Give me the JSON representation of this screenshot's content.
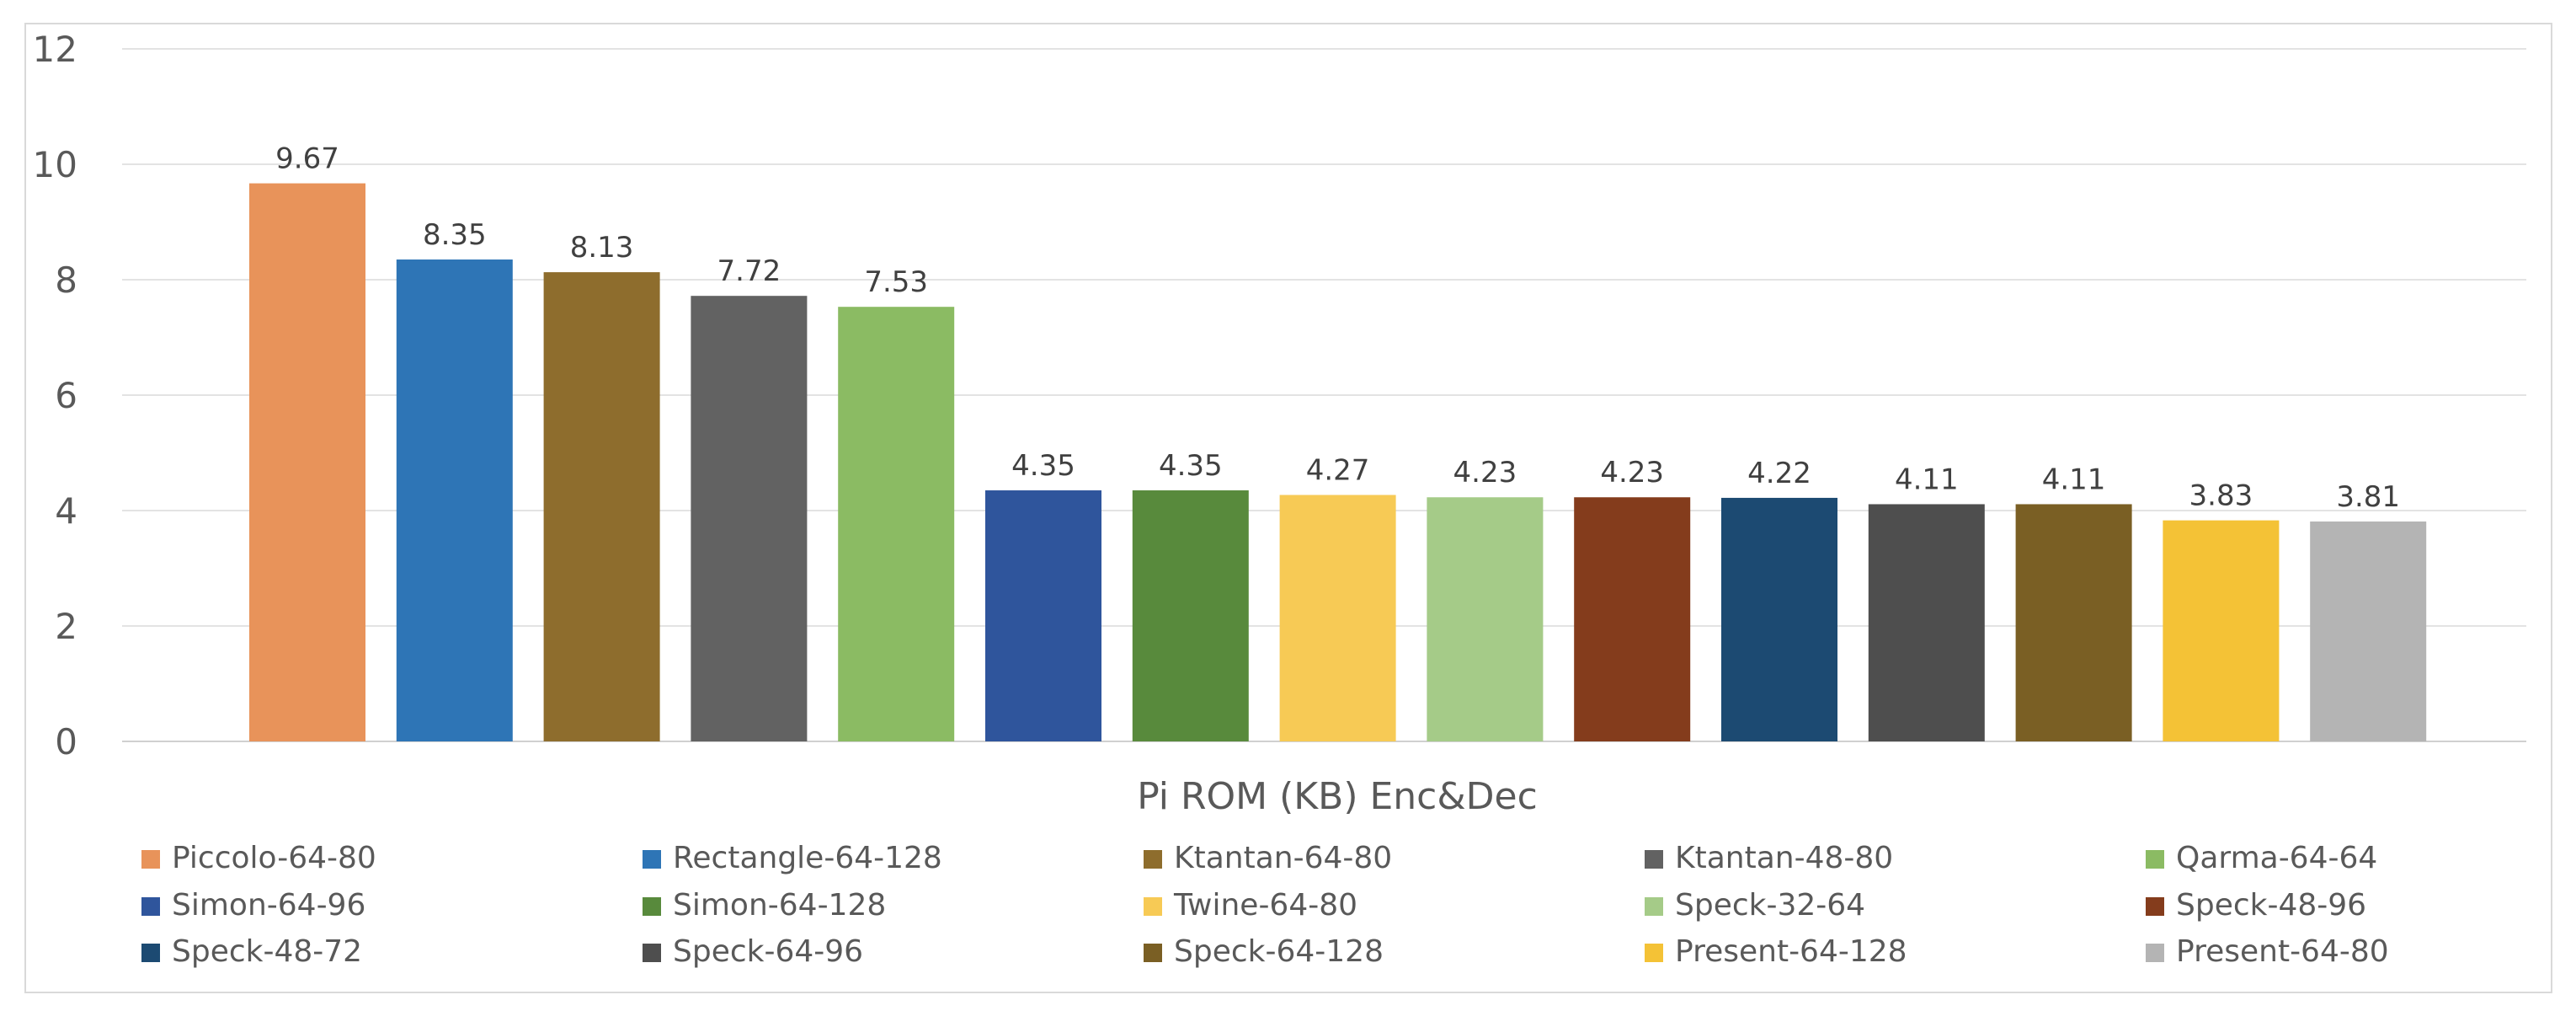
{
  "chart_data": {
    "type": "bar",
    "title": "",
    "xlabel": "Pi ROM (KB) Enc&Dec",
    "ylabel": "",
    "ylim": [
      0,
      12
    ],
    "yticks": [
      0,
      2,
      4,
      6,
      8,
      10,
      12
    ],
    "grid": true,
    "legend_position": "bottom",
    "categories": [
      "Piccolo-64-80",
      "Rectangle-64-128",
      "Ktantan-64-80",
      "Ktantan-48-80",
      "Qarma-64-64",
      "Simon-64-96",
      "Simon-64-128",
      "Twine-64-80",
      "Speck-32-64",
      "Speck-48-96",
      "Speck-48-72",
      "Speck-64-96",
      "Speck-64-128",
      "Present-64-128",
      "Present-64-80"
    ],
    "values": [
      9.67,
      8.35,
      8.13,
      7.72,
      7.53,
      4.35,
      4.35,
      4.27,
      4.23,
      4.23,
      4.22,
      4.11,
      4.11,
      3.83,
      3.81
    ],
    "value_labels": [
      "9.67",
      "8.35",
      "8.13",
      "7.72",
      "7.53",
      "4.35",
      "4.35",
      "4.27",
      "4.23",
      "4.23",
      "4.22",
      "4.11",
      "4.11",
      "3.83",
      "3.81"
    ],
    "colors": [
      "#E8935A",
      "#2E75B6",
      "#8E6D2D",
      "#626262",
      "#8BBB63",
      "#2F559C",
      "#588A3C",
      "#F7CA55",
      "#A5CB88",
      "#843C1C",
      "#1C4A72",
      "#4E4E4E",
      "#7A5F24",
      "#F4C236",
      "#B4B4B4"
    ]
  }
}
